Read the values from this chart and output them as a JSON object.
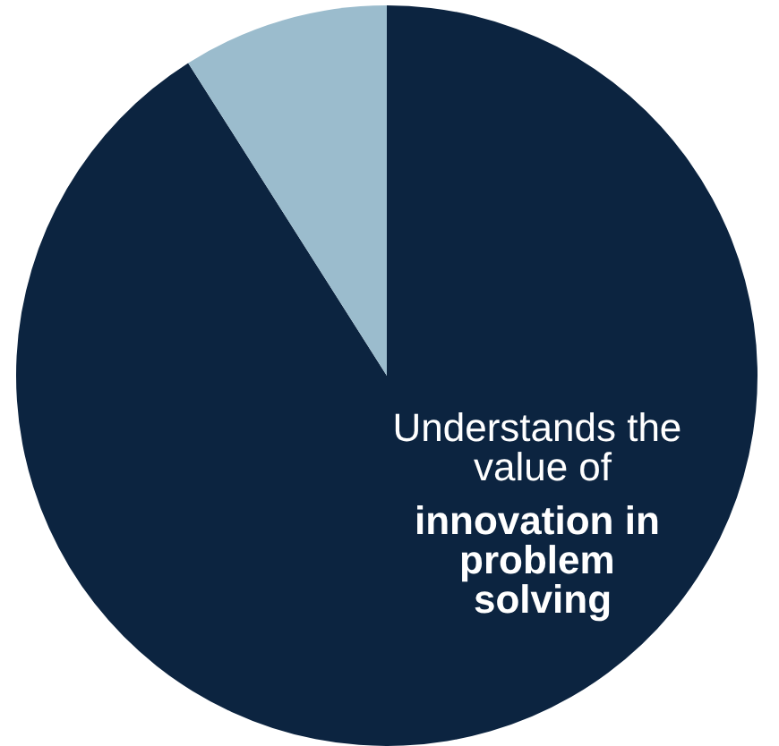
{
  "chart_data": {
    "type": "pie",
    "categories": [
      null,
      null
    ],
    "values": [
      91,
      9
    ],
    "colors": [
      "#0c2440",
      "#9bbccd"
    ],
    "annotations": [
      "Understands the value of",
      "innovation in problem solving"
    ]
  }
}
